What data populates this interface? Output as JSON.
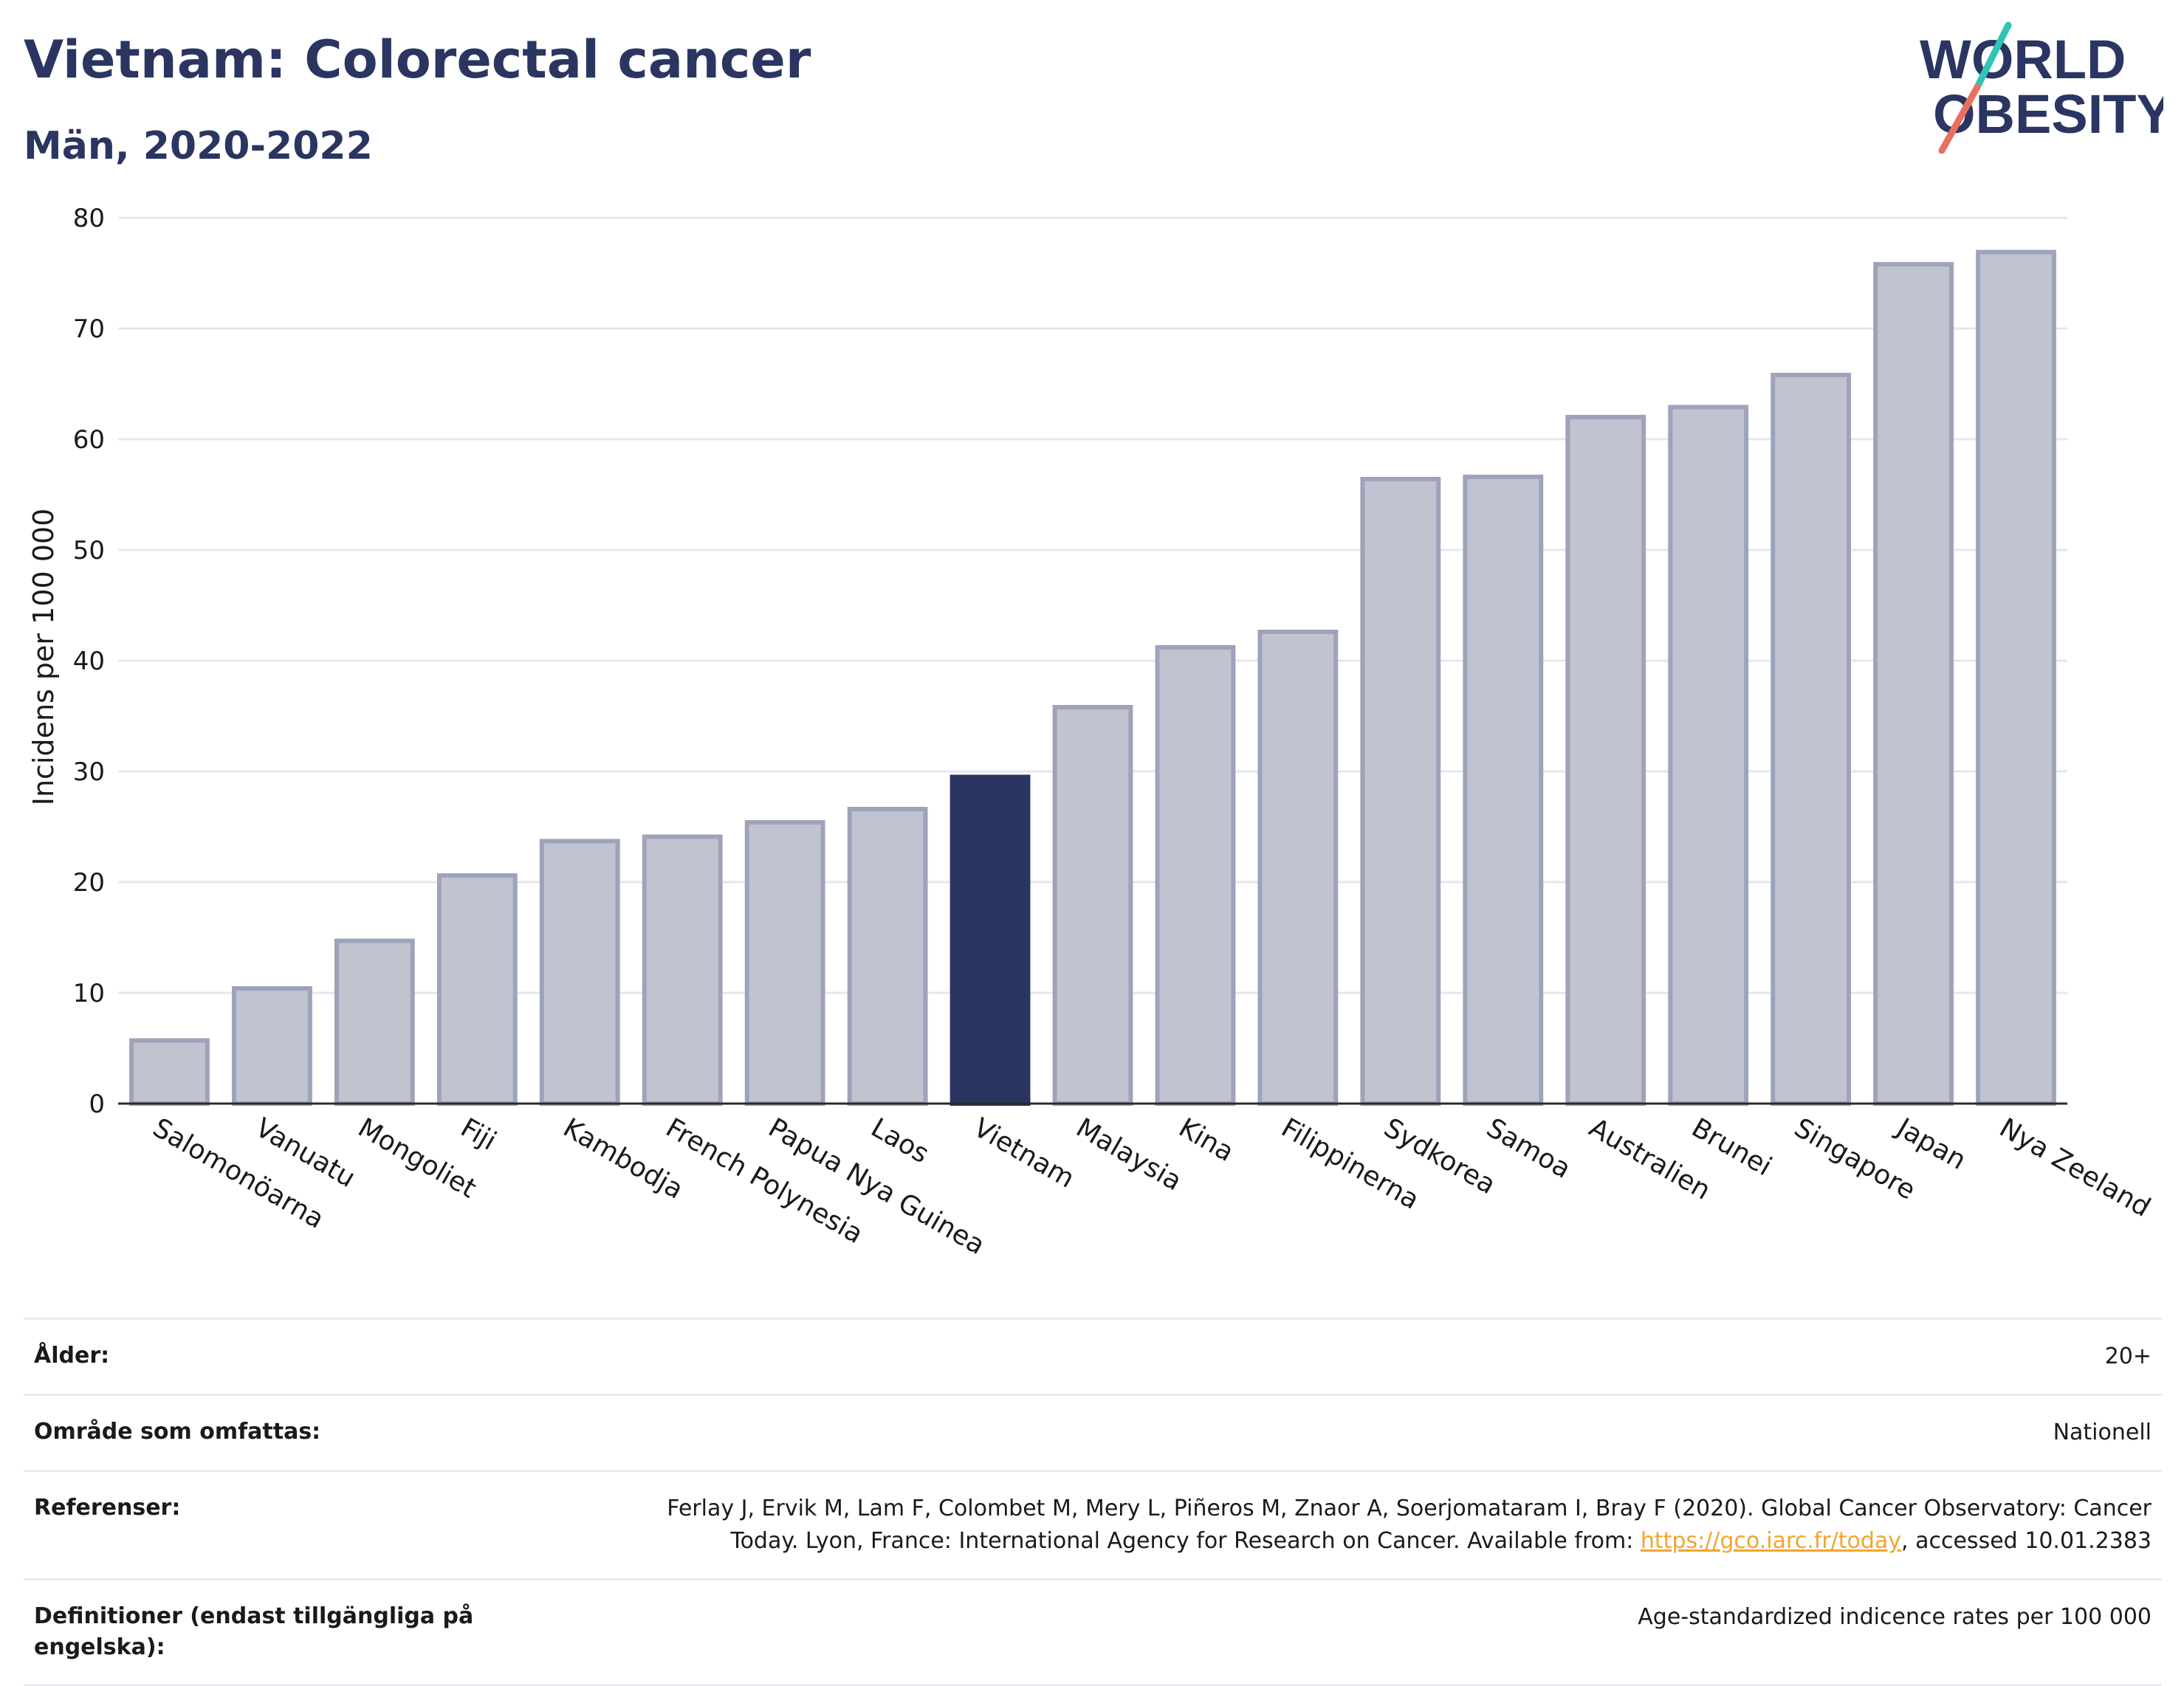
{
  "header": {
    "title": "Vietnam: Colorectal cancer",
    "subtitle": "Män, 2020-2022"
  },
  "logo": {
    "line1": "WORLD",
    "line2": "OBESITY",
    "colors": {
      "text": "#2a3561",
      "teal": "#2ec4b6",
      "coral": "#e8705f"
    }
  },
  "chart_data": {
    "type": "bar",
    "ylabel": "Incidens per 100 000",
    "ylim": [
      0,
      80
    ],
    "yticks": [
      0,
      10,
      20,
      30,
      40,
      50,
      60,
      70,
      80
    ],
    "grid": true,
    "highlight": "Vietnam",
    "colors": {
      "default": "#c0c3d0",
      "default_border": "#9ea3ba",
      "highlight": "#2a3561",
      "grid": "#e6e7ee",
      "axis": "#2b2b2b"
    },
    "categories": [
      "Salomonöarna",
      "Vanuatu",
      "Mongoliet",
      "Fiji",
      "Kambodja",
      "French Polynesia",
      "Papua Nya Guinea",
      "Laos",
      "Vietnam",
      "Malaysia",
      "Kina",
      "Filippinerna",
      "Sydkorea",
      "Samoa",
      "Australien",
      "Brunei",
      "Singapore",
      "Japan",
      "Nya Zeeland"
    ],
    "values": [
      5.7,
      10.4,
      14.7,
      20.6,
      23.7,
      24.1,
      25.4,
      26.6,
      29.5,
      35.8,
      41.2,
      42.6,
      56.4,
      56.6,
      62.0,
      62.9,
      65.8,
      75.8,
      76.9
    ]
  },
  "meta": {
    "age_label": "Ålder:",
    "age_value": "20+",
    "area_label": "Område som omfattas:",
    "area_value": "Nationell",
    "ref_label": "Referenser:",
    "ref_text_1": "Ferlay J, Ervik M, Lam F, Colombet M, Mery L, Piñeros M, Znaor A, Soerjomataram I, Bray F (2020). Global Cancer Observatory: Cancer",
    "ref_text_2": "Today. Lyon, France: International Agency for Research on Cancer. Available from: ",
    "ref_link": "https://gco.iarc.fr/today",
    "ref_text_3": ", accessed 10.01.2383",
    "def_label": "Definitioner (endast tillgängliga på engelska):",
    "def_value": "Age-standardized indicence rates per 100 000"
  }
}
